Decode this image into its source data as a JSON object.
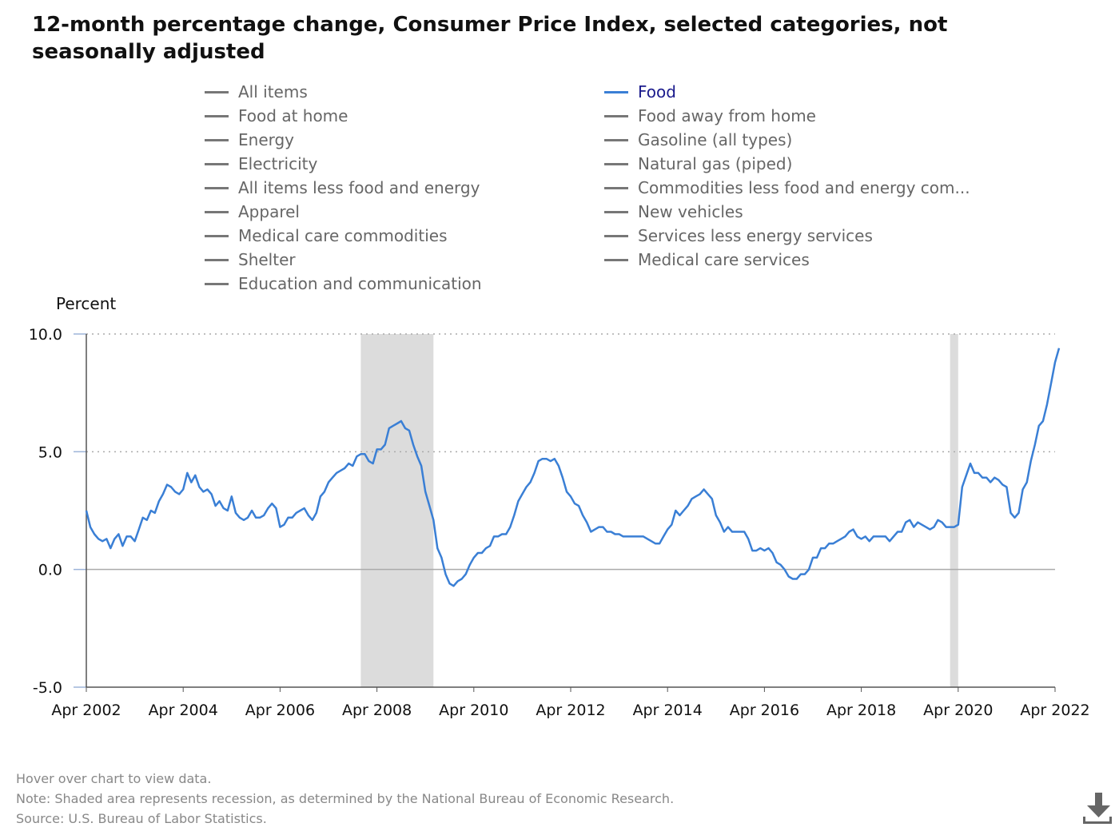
{
  "title": "12-month percentage change, Consumer Price Index, selected categories, not seasonally adjusted",
  "legend": [
    {
      "label": "All items",
      "active": false
    },
    {
      "label": "Food at home",
      "active": false
    },
    {
      "label": "Energy",
      "active": false
    },
    {
      "label": "Electricity",
      "active": false
    },
    {
      "label": "All items less food and energy",
      "active": false
    },
    {
      "label": "Apparel",
      "active": false
    },
    {
      "label": "Medical care commodities",
      "active": false
    },
    {
      "label": "Shelter",
      "active": false
    },
    {
      "label": "Education and communication",
      "active": false
    },
    {
      "label": "Food",
      "active": true
    },
    {
      "label": "Food away from home",
      "active": false
    },
    {
      "label": "Gasoline (all types)",
      "active": false
    },
    {
      "label": "Natural gas (piped)",
      "active": false
    },
    {
      "label": "Commodities less food and energy com...",
      "active": false
    },
    {
      "label": "New vehicles",
      "active": false
    },
    {
      "label": "Services less energy services",
      "active": false
    },
    {
      "label": "Medical care services",
      "active": false
    }
  ],
  "footnotes": {
    "hover": "Hover over chart to view data.",
    "note": "Note: Shaded area represents recession, as determined by the National Bureau of Economic Research.",
    "source": "Source: U.S. Bureau of Labor Statistics."
  },
  "icons": {
    "download": "download-icon"
  },
  "colors": {
    "series": "#3a7fd5",
    "recession": "#dcdcdc",
    "active_legend_text": "#1a1a8c"
  },
  "chart_data": {
    "type": "line",
    "ylabel": "Percent",
    "ylim": [
      -5,
      10
    ],
    "yticks": [
      "10.0",
      "5.0",
      "0.0",
      "-5.0"
    ],
    "ytick_values": [
      10,
      5,
      0,
      -5
    ],
    "xlim": [
      "2002-04",
      "2022-04"
    ],
    "xticks": [
      "Apr 2002",
      "Apr 2004",
      "Apr 2006",
      "Apr 2008",
      "Apr 2010",
      "Apr 2012",
      "Apr 2014",
      "Apr 2016",
      "Apr 2018",
      "Apr 2020",
      "Apr 2022"
    ],
    "xtick_dates": [
      "2002-04",
      "2004-04",
      "2006-04",
      "2008-04",
      "2010-04",
      "2012-04",
      "2014-04",
      "2016-04",
      "2018-04",
      "2020-04",
      "2022-04"
    ],
    "recessions": [
      {
        "start": "2007-12",
        "end": "2009-06"
      },
      {
        "start": "2020-02",
        "end": "2020-04"
      }
    ],
    "grid": "dotted at 10.0 and 5.0; solid zero line",
    "series": [
      {
        "name": "Food",
        "start": "2002-04",
        "frequency": "monthly",
        "values": [
          2.5,
          1.8,
          1.5,
          1.3,
          1.2,
          1.3,
          0.9,
          1.3,
          1.5,
          1.0,
          1.4,
          1.4,
          1.2,
          1.7,
          2.2,
          2.1,
          2.5,
          2.4,
          2.9,
          3.2,
          3.6,
          3.5,
          3.3,
          3.2,
          3.4,
          4.1,
          3.7,
          4.0,
          3.5,
          3.3,
          3.4,
          3.2,
          2.7,
          2.9,
          2.6,
          2.5,
          3.1,
          2.4,
          2.2,
          2.1,
          2.2,
          2.5,
          2.2,
          2.2,
          2.3,
          2.6,
          2.8,
          2.6,
          1.8,
          1.9,
          2.2,
          2.2,
          2.4,
          2.5,
          2.6,
          2.3,
          2.1,
          2.4,
          3.1,
          3.3,
          3.7,
          3.9,
          4.1,
          4.2,
          4.3,
          4.5,
          4.4,
          4.8,
          4.9,
          4.9,
          4.6,
          4.5,
          5.1,
          5.1,
          5.3,
          6.0,
          6.1,
          6.2,
          6.3,
          6.0,
          5.9,
          5.3,
          4.8,
          4.4,
          3.3,
          2.7,
          2.1,
          0.9,
          0.5,
          -0.2,
          -0.6,
          -0.7,
          -0.5,
          -0.4,
          -0.2,
          0.2,
          0.5,
          0.7,
          0.7,
          0.9,
          1.0,
          1.4,
          1.4,
          1.5,
          1.5,
          1.8,
          2.3,
          2.9,
          3.2,
          3.5,
          3.7,
          4.1,
          4.6,
          4.7,
          4.7,
          4.6,
          4.7,
          4.4,
          3.9,
          3.3,
          3.1,
          2.8,
          2.7,
          2.3,
          2.0,
          1.6,
          1.7,
          1.8,
          1.8,
          1.6,
          1.6,
          1.5,
          1.5,
          1.4,
          1.4,
          1.4,
          1.4,
          1.4,
          1.4,
          1.3,
          1.2,
          1.1,
          1.1,
          1.4,
          1.7,
          1.9,
          2.5,
          2.3,
          2.5,
          2.7,
          3.0,
          3.1,
          3.2,
          3.4,
          3.2,
          3.0,
          2.3,
          2.0,
          1.6,
          1.8,
          1.6,
          1.6,
          1.6,
          1.6,
          1.3,
          0.8,
          0.8,
          0.9,
          0.8,
          0.9,
          0.7,
          0.3,
          0.2,
          0.0,
          -0.3,
          -0.4,
          -0.4,
          -0.2,
          -0.2,
          0.0,
          0.5,
          0.5,
          0.9,
          0.9,
          1.1,
          1.1,
          1.2,
          1.3,
          1.4,
          1.6,
          1.7,
          1.4,
          1.3,
          1.4,
          1.2,
          1.4,
          1.4,
          1.4,
          1.4,
          1.2,
          1.4,
          1.6,
          1.6,
          2.0,
          2.1,
          1.8,
          2.0,
          1.9,
          1.8,
          1.7,
          1.8,
          2.1,
          2.0,
          1.8,
          1.8,
          1.8,
          1.9,
          3.5,
          4.0,
          4.5,
          4.1,
          4.1,
          3.9,
          3.9,
          3.7,
          3.9,
          3.8,
          3.6,
          3.5,
          2.4,
          2.2,
          2.4,
          3.4,
          3.7,
          4.6,
          5.3,
          6.1,
          6.3,
          7.0,
          7.9,
          8.8,
          9.4
        ]
      }
    ]
  }
}
